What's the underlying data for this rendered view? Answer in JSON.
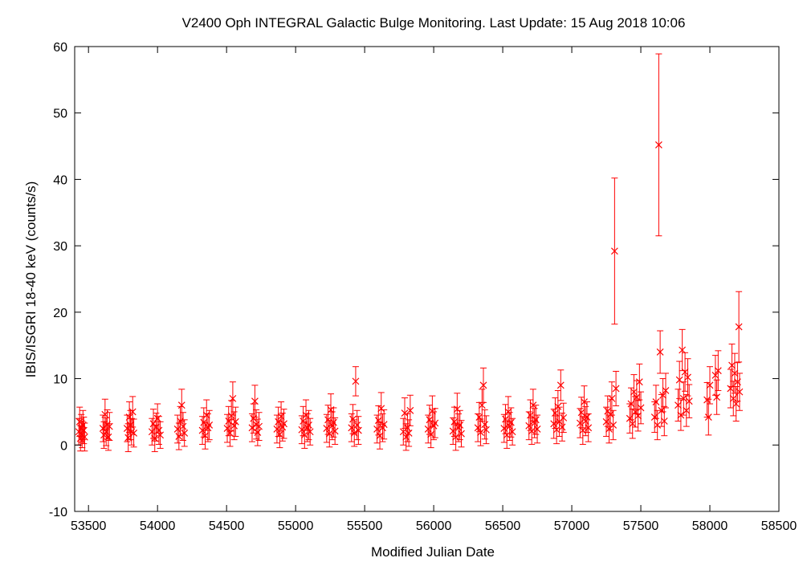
{
  "chart_data": {
    "type": "scatter",
    "title": "V2400 Oph   INTEGRAL Galactic Bulge Monitoring.  Last Update: 15 Aug 2018 10:06",
    "xlabel": "Modified Julian Date",
    "ylabel": "IBIS/ISGRI 18-40 keV (counts/s)",
    "xlim": [
      53400,
      58500
    ],
    "ylim": [
      -10,
      60
    ],
    "xticks": [
      53500,
      54000,
      54500,
      55000,
      55500,
      56000,
      56500,
      57000,
      57500,
      58000,
      58500
    ],
    "yticks": [
      -10,
      0,
      10,
      20,
      30,
      40,
      50,
      60
    ],
    "xtick_labels": [
      "53500",
      "54000",
      "54500",
      "55000",
      "55500",
      "56000",
      "56500",
      "57000",
      "57500",
      "58000",
      "58500"
    ],
    "ytick_labels": [
      "-10",
      "0",
      "10",
      "20",
      "30",
      "40",
      "50",
      "60"
    ],
    "grid": false,
    "marker": "x",
    "color": "#ff0000",
    "points": [
      {
        "x": 53430,
        "y": 2.0,
        "err": 2.0
      },
      {
        "x": 53436,
        "y": 3.5,
        "err": 2.2
      },
      {
        "x": 53442,
        "y": 1.0,
        "err": 1.9
      },
      {
        "x": 53448,
        "y": 2.5,
        "err": 2.1
      },
      {
        "x": 53454,
        "y": 1.6,
        "err": 2.0
      },
      {
        "x": 53460,
        "y": 3.0,
        "err": 2.2
      },
      {
        "x": 53466,
        "y": 2.2,
        "err": 2.0
      },
      {
        "x": 53472,
        "y": 1.2,
        "err": 2.1
      },
      {
        "x": 53605,
        "y": 2.5,
        "err": 2.0
      },
      {
        "x": 53612,
        "y": 1.5,
        "err": 2.0
      },
      {
        "x": 53620,
        "y": 4.6,
        "err": 2.3
      },
      {
        "x": 53628,
        "y": 2.0,
        "err": 2.1
      },
      {
        "x": 53636,
        "y": 3.1,
        "err": 2.2
      },
      {
        "x": 53644,
        "y": 1.2,
        "err": 2.0
      },
      {
        "x": 53652,
        "y": 2.8,
        "err": 2.1
      },
      {
        "x": 53780,
        "y": 2.5,
        "err": 2.0
      },
      {
        "x": 53788,
        "y": 1.1,
        "err": 2.1
      },
      {
        "x": 53796,
        "y": 4.2,
        "err": 2.3
      },
      {
        "x": 53804,
        "y": 3.0,
        "err": 2.2
      },
      {
        "x": 53812,
        "y": 2.0,
        "err": 2.0
      },
      {
        "x": 53820,
        "y": 5.0,
        "err": 2.3
      },
      {
        "x": 53828,
        "y": 1.8,
        "err": 2.1
      },
      {
        "x": 53960,
        "y": 2.0,
        "err": 2.0
      },
      {
        "x": 53970,
        "y": 3.2,
        "err": 2.2
      },
      {
        "x": 53980,
        "y": 1.0,
        "err": 2.0
      },
      {
        "x": 53990,
        "y": 2.7,
        "err": 2.1
      },
      {
        "x": 54000,
        "y": 4.0,
        "err": 2.2
      },
      {
        "x": 54010,
        "y": 2.2,
        "err": 2.1
      },
      {
        "x": 54020,
        "y": 1.5,
        "err": 2.0
      },
      {
        "x": 54145,
        "y": 2.4,
        "err": 2.1
      },
      {
        "x": 54155,
        "y": 1.3,
        "err": 2.0
      },
      {
        "x": 54165,
        "y": 3.6,
        "err": 2.2
      },
      {
        "x": 54175,
        "y": 6.0,
        "err": 2.4
      },
      {
        "x": 54185,
        "y": 2.8,
        "err": 2.1
      },
      {
        "x": 54195,
        "y": 1.8,
        "err": 2.0
      },
      {
        "x": 54325,
        "y": 2.2,
        "err": 2.1
      },
      {
        "x": 54335,
        "y": 3.4,
        "err": 2.2
      },
      {
        "x": 54345,
        "y": 1.4,
        "err": 2.0
      },
      {
        "x": 54355,
        "y": 4.5,
        "err": 2.3
      },
      {
        "x": 54365,
        "y": 2.6,
        "err": 2.1
      },
      {
        "x": 54375,
        "y": 3.0,
        "err": 2.2
      },
      {
        "x": 54505,
        "y": 2.5,
        "err": 2.1
      },
      {
        "x": 54515,
        "y": 3.6,
        "err": 2.2
      },
      {
        "x": 54525,
        "y": 1.8,
        "err": 2.0
      },
      {
        "x": 54535,
        "y": 4.4,
        "err": 2.3
      },
      {
        "x": 54545,
        "y": 7.0,
        "err": 2.5
      },
      {
        "x": 54555,
        "y": 2.9,
        "err": 2.1
      },
      {
        "x": 54565,
        "y": 3.5,
        "err": 2.2
      },
      {
        "x": 54685,
        "y": 2.6,
        "err": 2.1
      },
      {
        "x": 54695,
        "y": 4.0,
        "err": 2.2
      },
      {
        "x": 54705,
        "y": 6.6,
        "err": 2.4
      },
      {
        "x": 54715,
        "y": 3.1,
        "err": 2.2
      },
      {
        "x": 54725,
        "y": 1.9,
        "err": 2.0
      },
      {
        "x": 54735,
        "y": 2.8,
        "err": 2.1
      },
      {
        "x": 54865,
        "y": 2.4,
        "err": 2.1
      },
      {
        "x": 54875,
        "y": 3.5,
        "err": 2.2
      },
      {
        "x": 54885,
        "y": 1.6,
        "err": 2.0
      },
      {
        "x": 54895,
        "y": 4.3,
        "err": 2.2
      },
      {
        "x": 54905,
        "y": 2.7,
        "err": 2.1
      },
      {
        "x": 54915,
        "y": 3.2,
        "err": 2.2
      },
      {
        "x": 55045,
        "y": 2.3,
        "err": 2.1
      },
      {
        "x": 55055,
        "y": 3.6,
        "err": 2.2
      },
      {
        "x": 55065,
        "y": 1.5,
        "err": 2.0
      },
      {
        "x": 55075,
        "y": 4.5,
        "err": 2.3
      },
      {
        "x": 55085,
        "y": 2.6,
        "err": 2.1
      },
      {
        "x": 55095,
        "y": 3.0,
        "err": 2.2
      },
      {
        "x": 55105,
        "y": 2.0,
        "err": 2.0
      },
      {
        "x": 55225,
        "y": 2.5,
        "err": 2.1
      },
      {
        "x": 55235,
        "y": 3.8,
        "err": 2.2
      },
      {
        "x": 55245,
        "y": 1.7,
        "err": 2.0
      },
      {
        "x": 55255,
        "y": 5.3,
        "err": 2.4
      },
      {
        "x": 55265,
        "y": 2.9,
        "err": 2.1
      },
      {
        "x": 55275,
        "y": 3.4,
        "err": 2.2
      },
      {
        "x": 55285,
        "y": 2.1,
        "err": 2.0
      },
      {
        "x": 55405,
        "y": 2.6,
        "err": 2.1
      },
      {
        "x": 55415,
        "y": 3.9,
        "err": 2.2
      },
      {
        "x": 55425,
        "y": 1.8,
        "err": 2.0
      },
      {
        "x": 55435,
        "y": 9.6,
        "err": 2.2
      },
      {
        "x": 55445,
        "y": 3.0,
        "err": 2.2
      },
      {
        "x": 55455,
        "y": 2.2,
        "err": 2.1
      },
      {
        "x": 55590,
        "y": 2.4,
        "err": 2.1
      },
      {
        "x": 55600,
        "y": 3.7,
        "err": 2.2
      },
      {
        "x": 55610,
        "y": 1.4,
        "err": 2.0
      },
      {
        "x": 55620,
        "y": 5.5,
        "err": 2.4
      },
      {
        "x": 55630,
        "y": 2.6,
        "err": 2.1
      },
      {
        "x": 55640,
        "y": 3.1,
        "err": 2.2
      },
      {
        "x": 55780,
        "y": 2.0,
        "err": 2.0
      },
      {
        "x": 55790,
        "y": 4.8,
        "err": 2.3
      },
      {
        "x": 55800,
        "y": 1.2,
        "err": 2.0
      },
      {
        "x": 55810,
        "y": 2.6,
        "err": 2.1
      },
      {
        "x": 55820,
        "y": 1.8,
        "err": 2.0
      },
      {
        "x": 55830,
        "y": 5.2,
        "err": 2.3
      },
      {
        "x": 55960,
        "y": 2.4,
        "err": 2.1
      },
      {
        "x": 55970,
        "y": 3.8,
        "err": 2.2
      },
      {
        "x": 55980,
        "y": 1.6,
        "err": 2.0
      },
      {
        "x": 55990,
        "y": 5.1,
        "err": 2.3
      },
      {
        "x": 56000,
        "y": 2.9,
        "err": 2.1
      },
      {
        "x": 56010,
        "y": 3.3,
        "err": 2.2
      },
      {
        "x": 56140,
        "y": 2.1,
        "err": 2.0
      },
      {
        "x": 56150,
        "y": 3.5,
        "err": 2.2
      },
      {
        "x": 56160,
        "y": 1.2,
        "err": 2.0
      },
      {
        "x": 56170,
        "y": 5.4,
        "err": 2.4
      },
      {
        "x": 56180,
        "y": 2.6,
        "err": 2.1
      },
      {
        "x": 56190,
        "y": 3.0,
        "err": 2.2
      },
      {
        "x": 56200,
        "y": 1.7,
        "err": 2.0
      },
      {
        "x": 56320,
        "y": 2.6,
        "err": 2.1
      },
      {
        "x": 56330,
        "y": 4.2,
        "err": 2.2
      },
      {
        "x": 56340,
        "y": 1.9,
        "err": 2.0
      },
      {
        "x": 56350,
        "y": 6.0,
        "err": 2.4
      },
      {
        "x": 56360,
        "y": 9.0,
        "err": 2.6
      },
      {
        "x": 56370,
        "y": 3.1,
        "err": 2.2
      },
      {
        "x": 56380,
        "y": 2.3,
        "err": 2.1
      },
      {
        "x": 56510,
        "y": 2.5,
        "err": 2.1
      },
      {
        "x": 56520,
        "y": 3.9,
        "err": 2.2
      },
      {
        "x": 56530,
        "y": 1.5,
        "err": 2.0
      },
      {
        "x": 56540,
        "y": 5.0,
        "err": 2.3
      },
      {
        "x": 56550,
        "y": 2.8,
        "err": 2.1
      },
      {
        "x": 56560,
        "y": 3.4,
        "err": 2.2
      },
      {
        "x": 56570,
        "y": 2.0,
        "err": 2.0
      },
      {
        "x": 56690,
        "y": 2.9,
        "err": 2.1
      },
      {
        "x": 56700,
        "y": 4.5,
        "err": 2.3
      },
      {
        "x": 56710,
        "y": 2.1,
        "err": 2.0
      },
      {
        "x": 56720,
        "y": 6.0,
        "err": 2.4
      },
      {
        "x": 56730,
        "y": 3.3,
        "err": 2.2
      },
      {
        "x": 56740,
        "y": 3.8,
        "err": 2.2
      },
      {
        "x": 56750,
        "y": 2.4,
        "err": 2.1
      },
      {
        "x": 56870,
        "y": 3.2,
        "err": 2.2
      },
      {
        "x": 56880,
        "y": 4.8,
        "err": 2.3
      },
      {
        "x": 56890,
        "y": 2.3,
        "err": 2.1
      },
      {
        "x": 56900,
        "y": 5.8,
        "err": 2.4
      },
      {
        "x": 56910,
        "y": 3.5,
        "err": 2.2
      },
      {
        "x": 56920,
        "y": 9.0,
        "err": 2.3
      },
      {
        "x": 56930,
        "y": 2.7,
        "err": 2.1
      },
      {
        "x": 56940,
        "y": 4.1,
        "err": 2.2
      },
      {
        "x": 57060,
        "y": 3.3,
        "err": 2.2
      },
      {
        "x": 57070,
        "y": 4.9,
        "err": 2.3
      },
      {
        "x": 57080,
        "y": 2.2,
        "err": 2.1
      },
      {
        "x": 57090,
        "y": 6.5,
        "err": 2.4
      },
      {
        "x": 57100,
        "y": 3.6,
        "err": 2.2
      },
      {
        "x": 57110,
        "y": 4.2,
        "err": 2.3
      },
      {
        "x": 57120,
        "y": 2.6,
        "err": 2.1
      },
      {
        "x": 57250,
        "y": 3.5,
        "err": 2.2
      },
      {
        "x": 57260,
        "y": 5.1,
        "err": 2.3
      },
      {
        "x": 57270,
        "y": 2.4,
        "err": 2.1
      },
      {
        "x": 57280,
        "y": 4.6,
        "err": 2.3
      },
      {
        "x": 57290,
        "y": 7.0,
        "err": 2.5
      },
      {
        "x": 57300,
        "y": 3.0,
        "err": 2.2
      },
      {
        "x": 57310,
        "y": 29.2,
        "err": 11.0
      },
      {
        "x": 57320,
        "y": 8.5,
        "err": 2.6
      },
      {
        "x": 57420,
        "y": 4.0,
        "err": 2.2
      },
      {
        "x": 57430,
        "y": 6.2,
        "err": 2.4
      },
      {
        "x": 57440,
        "y": 3.2,
        "err": 2.2
      },
      {
        "x": 57450,
        "y": 8.0,
        "err": 2.6
      },
      {
        "x": 57460,
        "y": 5.0,
        "err": 2.3
      },
      {
        "x": 57470,
        "y": 7.2,
        "err": 2.5
      },
      {
        "x": 57480,
        "y": 4.4,
        "err": 2.3
      },
      {
        "x": 57490,
        "y": 9.5,
        "err": 2.7
      },
      {
        "x": 57500,
        "y": 5.6,
        "err": 2.4
      },
      {
        "x": 57600,
        "y": 4.2,
        "err": 2.3
      },
      {
        "x": 57610,
        "y": 6.5,
        "err": 2.5
      },
      {
        "x": 57620,
        "y": 3.0,
        "err": 2.2
      },
      {
        "x": 57630,
        "y": 45.2,
        "err": 13.7
      },
      {
        "x": 57640,
        "y": 14.0,
        "err": 3.2
      },
      {
        "x": 57650,
        "y": 5.2,
        "err": 2.4
      },
      {
        "x": 57660,
        "y": 7.5,
        "err": 2.5
      },
      {
        "x": 57670,
        "y": 3.6,
        "err": 2.2
      },
      {
        "x": 57680,
        "y": 8.2,
        "err": 2.6
      },
      {
        "x": 57770,
        "y": 6.0,
        "err": 2.4
      },
      {
        "x": 57780,
        "y": 9.8,
        "err": 2.8
      },
      {
        "x": 57790,
        "y": 4.5,
        "err": 2.3
      },
      {
        "x": 57800,
        "y": 14.3,
        "err": 3.1
      },
      {
        "x": 57810,
        "y": 7.0,
        "err": 2.5
      },
      {
        "x": 57820,
        "y": 11.0,
        "err": 2.9
      },
      {
        "x": 57830,
        "y": 5.2,
        "err": 2.4
      },
      {
        "x": 57840,
        "y": 10.2,
        "err": 2.8
      },
      {
        "x": 57850,
        "y": 6.6,
        "err": 2.5
      },
      {
        "x": 57980,
        "y": 6.8,
        "err": 2.6
      },
      {
        "x": 57990,
        "y": 4.2,
        "err": 2.7
      },
      {
        "x": 58000,
        "y": 9.0,
        "err": 2.8
      },
      {
        "x": 58040,
        "y": 10.5,
        "err": 3.0
      },
      {
        "x": 58050,
        "y": 7.2,
        "err": 2.6
      },
      {
        "x": 58060,
        "y": 11.2,
        "err": 3.0
      },
      {
        "x": 58150,
        "y": 8.5,
        "err": 2.9
      },
      {
        "x": 58160,
        "y": 12.0,
        "err": 3.2
      },
      {
        "x": 58170,
        "y": 7.0,
        "err": 2.6
      },
      {
        "x": 58180,
        "y": 10.8,
        "err": 3.0
      },
      {
        "x": 58190,
        "y": 6.2,
        "err": 2.6
      },
      {
        "x": 58200,
        "y": 9.5,
        "err": 2.9
      },
      {
        "x": 58210,
        "y": 17.8,
        "err": 5.3
      },
      {
        "x": 58215,
        "y": 8.0,
        "err": 2.8
      }
    ]
  }
}
